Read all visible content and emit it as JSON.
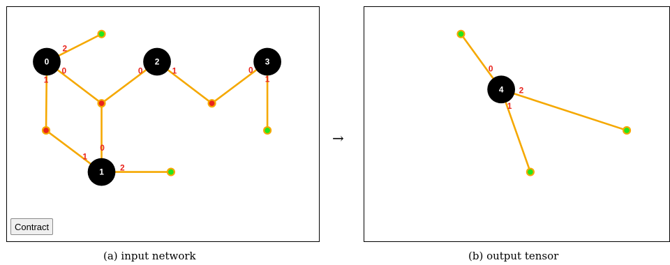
{
  "input_panel": {
    "caption": "(a) input network",
    "contract_label": "Contract",
    "nodes": [
      {
        "id": "0",
        "label": "0"
      },
      {
        "id": "1",
        "label": "1"
      },
      {
        "id": "2",
        "label": "2"
      },
      {
        "id": "3",
        "label": "3"
      }
    ],
    "ports": [
      {
        "node": "0",
        "label": "2"
      },
      {
        "node": "0",
        "label": "0"
      },
      {
        "node": "0",
        "label": "1"
      },
      {
        "node": "2",
        "label": "0"
      },
      {
        "node": "2",
        "label": "1"
      },
      {
        "node": "3",
        "label": "0"
      },
      {
        "node": "3",
        "label": "1"
      },
      {
        "node": "1",
        "label": "0"
      },
      {
        "node": "1",
        "label": "1"
      },
      {
        "node": "1",
        "label": "2"
      }
    ]
  },
  "arrow": "→",
  "output_panel": {
    "caption": "(b) output tensor",
    "nodes": [
      {
        "id": "4",
        "label": "4"
      }
    ],
    "ports": [
      {
        "node": "4",
        "label": "0"
      },
      {
        "node": "4",
        "label": "1"
      },
      {
        "node": "4",
        "label": "2"
      }
    ]
  },
  "colors": {
    "edge": "#f5a800",
    "dangling_end": "#22e51e",
    "hub": "#e8231c",
    "node": "#000000",
    "port_label": "#e8231c"
  }
}
